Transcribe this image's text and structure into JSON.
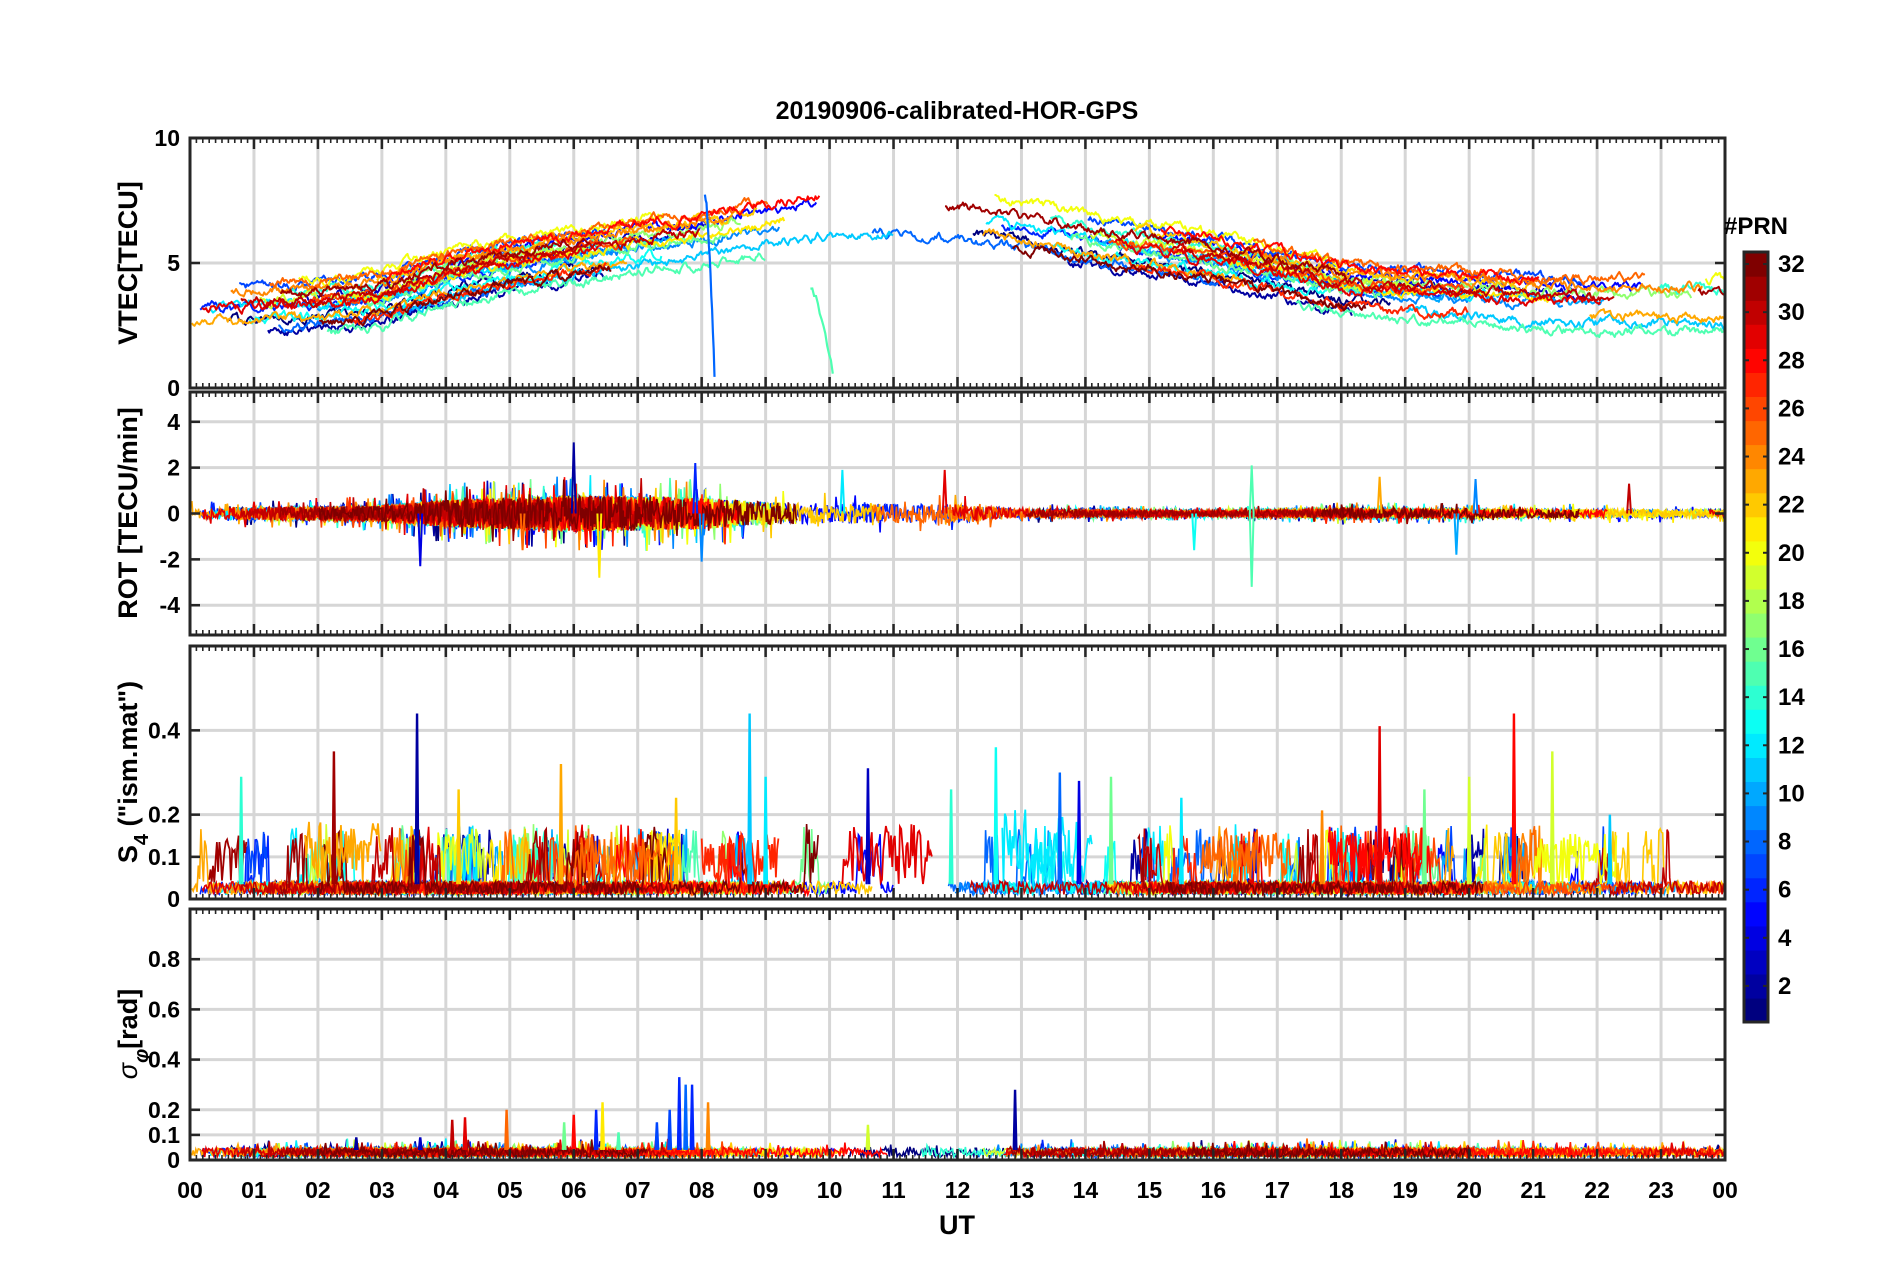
{
  "chart_data": {
    "type": "line",
    "title": "20190906-calibrated-HOR-GPS",
    "xlabel": "UT",
    "x_ticks": [
      "00",
      "01",
      "02",
      "03",
      "04",
      "05",
      "06",
      "07",
      "08",
      "09",
      "10",
      "11",
      "12",
      "13",
      "14",
      "15",
      "16",
      "17",
      "18",
      "19",
      "20",
      "21",
      "22",
      "23",
      "00"
    ],
    "xlim": [
      0,
      24
    ],
    "colorbar": {
      "label": "#PRN",
      "range": [
        1,
        32
      ],
      "ticks": [
        "2",
        "4",
        "6",
        "8",
        "10",
        "12",
        "14",
        "16",
        "18",
        "20",
        "22",
        "24",
        "26",
        "28",
        "30",
        "32"
      ],
      "colormap": [
        "#00007f",
        "#0000ff",
        "#007fff",
        "#00ffff",
        "#7fff7f",
        "#ffff00",
        "#ff7f00",
        "#ff0000",
        "#7f0000"
      ]
    },
    "panels": [
      {
        "name": "vtec",
        "ylabel_main": "VTEC[TECU]",
        "ylabel_sub": "",
        "ylabel_tail": "",
        "ylim": [
          0,
          10
        ],
        "y_ticks": [
          {
            "v": 0,
            "t": "0"
          },
          {
            "v": 5,
            "t": "5"
          },
          {
            "v": 10,
            "t": "10"
          }
        ],
        "trend": {
          "x": [
            0,
            2,
            3,
            4,
            5,
            6,
            7,
            8,
            9,
            10,
            11,
            12,
            13,
            14,
            15,
            16,
            17,
            18,
            19,
            20,
            21,
            22,
            23,
            24
          ],
          "y": [
            3.2,
            3.3,
            3.6,
            4.4,
            4.9,
            5.3,
            5.7,
            6.0,
            6.5,
            6.9,
            7.0,
            6.8,
            6.4,
            5.9,
            5.5,
            5.1,
            4.6,
            4.0,
            3.8,
            3.7,
            3.5,
            3.4,
            3.4,
            3.3
          ]
        },
        "spread": 1.1,
        "noise": 0.25,
        "extras": [
          {
            "prn": 8,
            "x": 8.05,
            "len": 0.15,
            "y": 7.8,
            "drop": 0.5
          },
          {
            "prn": 15,
            "x": 9.7,
            "len": 0.35,
            "y": 4.0,
            "drop": 0.6
          }
        ]
      },
      {
        "name": "rot",
        "ylabel_main": "ROT [TECU/min]",
        "ylabel_sub": "",
        "ylabel_tail": "",
        "ylim": [
          -5.3,
          5.3
        ],
        "y_ticks": [
          {
            "v": -4,
            "t": "-4"
          },
          {
            "v": -2,
            "t": "-2"
          },
          {
            "v": 0,
            "t": "0"
          },
          {
            "v": 2,
            "t": "2"
          },
          {
            "v": 4,
            "t": "4"
          }
        ],
        "activity": {
          "x": [
            0,
            3,
            4,
            6,
            8,
            9,
            10,
            12,
            13,
            16,
            18,
            24
          ],
          "y": [
            0.25,
            0.35,
            0.6,
            0.8,
            0.7,
            0.5,
            0.45,
            0.4,
            0.2,
            0.12,
            0.22,
            0.18
          ]
        },
        "spikes": [
          {
            "x": 6.0,
            "y": 3.1,
            "prn": 2
          },
          {
            "x": 3.6,
            "y": -2.3,
            "prn": 4
          },
          {
            "x": 6.4,
            "y": -2.8,
            "prn": 21
          },
          {
            "x": 8.0,
            "y": -2.1,
            "prn": 9
          },
          {
            "x": 7.9,
            "y": 2.2,
            "prn": 6
          },
          {
            "x": 16.6,
            "y": -3.2,
            "prn": 15
          },
          {
            "x": 16.6,
            "y": 2.1,
            "prn": 15
          },
          {
            "x": 19.8,
            "y": -1.8,
            "prn": 10
          },
          {
            "x": 15.7,
            "y": -1.6,
            "prn": 13
          },
          {
            "x": 20.1,
            "y": 1.5,
            "prn": 9
          },
          {
            "x": 11.8,
            "y": 1.9,
            "prn": 29
          },
          {
            "x": 22.5,
            "y": 1.3,
            "prn": 30
          },
          {
            "x": 18.6,
            "y": 1.6,
            "prn": 23
          },
          {
            "x": 5.2,
            "y": -1.6,
            "prn": 25
          },
          {
            "x": 10.2,
            "y": 1.9,
            "prn": 12
          }
        ]
      },
      {
        "name": "s4",
        "ylabel_main": "S",
        "ylabel_sub": "4",
        "ylabel_tail": " (\"ism.mat\")",
        "ylim": [
          0,
          0.6
        ],
        "y_ticks": [
          {
            "v": 0,
            "t": "0"
          },
          {
            "v": 0.1,
            "t": "0.1"
          },
          {
            "v": 0.2,
            "t": "0.2"
          },
          {
            "v": 0.4,
            "t": "0.4"
          }
        ],
        "baseline": 0.035,
        "spikes": [
          {
            "x": 3.55,
            "y": 0.44,
            "prn": 2
          },
          {
            "x": 2.25,
            "y": 0.35,
            "prn": 31
          },
          {
            "x": 8.75,
            "y": 0.44,
            "prn": 11
          },
          {
            "x": 20.7,
            "y": 0.44,
            "prn": 28
          },
          {
            "x": 18.6,
            "y": 0.41,
            "prn": 29
          },
          {
            "x": 12.6,
            "y": 0.36,
            "prn": 13
          },
          {
            "x": 5.8,
            "y": 0.32,
            "prn": 23
          },
          {
            "x": 4.2,
            "y": 0.26,
            "prn": 22
          },
          {
            "x": 13.6,
            "y": 0.3,
            "prn": 8
          },
          {
            "x": 13.9,
            "y": 0.28,
            "prn": 4
          },
          {
            "x": 21.3,
            "y": 0.35,
            "prn": 19
          },
          {
            "x": 10.6,
            "y": 0.31,
            "prn": 3
          },
          {
            "x": 11.9,
            "y": 0.26,
            "prn": 14
          },
          {
            "x": 7.6,
            "y": 0.24,
            "prn": 22
          },
          {
            "x": 9.0,
            "y": 0.29,
            "prn": 12
          },
          {
            "x": 14.4,
            "y": 0.29,
            "prn": 16
          },
          {
            "x": 0.8,
            "y": 0.29,
            "prn": 14
          },
          {
            "x": 15.5,
            "y": 0.24,
            "prn": 12
          },
          {
            "x": 17.7,
            "y": 0.21,
            "prn": 24
          },
          {
            "x": 19.3,
            "y": 0.26,
            "prn": 16
          },
          {
            "x": 20.0,
            "y": 0.29,
            "prn": 19
          },
          {
            "x": 22.2,
            "y": 0.2,
            "prn": 11
          }
        ],
        "bursts": [
          {
            "x": 1.8,
            "w": 1.2,
            "h": 0.15,
            "prn": 23
          },
          {
            "x": 6.0,
            "w": 1.6,
            "h": 0.12,
            "prn": 25
          },
          {
            "x": 8.0,
            "w": 1.2,
            "h": 0.12,
            "prn": 27
          },
          {
            "x": 10.2,
            "w": 1.4,
            "h": 0.15,
            "prn": 29
          },
          {
            "x": 12.7,
            "w": 1.4,
            "h": 0.18,
            "prn": 12
          },
          {
            "x": 15.8,
            "w": 1.4,
            "h": 0.13,
            "prn": 25
          },
          {
            "x": 17.8,
            "w": 1.6,
            "h": 0.14,
            "prn": 28
          },
          {
            "x": 21.0,
            "w": 1.3,
            "h": 0.12,
            "prn": 20
          },
          {
            "x": 0.3,
            "w": 0.6,
            "h": 0.12,
            "prn": 31
          }
        ]
      },
      {
        "name": "sigphi",
        "ylabel_main": "σ",
        "ylabel_sub": "φ",
        "ylabel_tail": "[rad]",
        "ylim": [
          0,
          1
        ],
        "y_ticks": [
          {
            "v": 0,
            "t": "0"
          },
          {
            "v": 0.1,
            "t": "0.1"
          },
          {
            "v": 0.2,
            "t": "0.2"
          },
          {
            "v": 0.4,
            "t": "0.4"
          },
          {
            "v": 0.6,
            "t": "0.6"
          },
          {
            "v": 0.8,
            "t": "0.8"
          }
        ],
        "baseline": 0.04,
        "spikes": [
          {
            "x": 7.65,
            "y": 0.33,
            "prn": 6
          },
          {
            "x": 7.75,
            "y": 0.3,
            "prn": 8
          },
          {
            "x": 7.85,
            "y": 0.3,
            "prn": 6
          },
          {
            "x": 7.5,
            "y": 0.2,
            "prn": 7
          },
          {
            "x": 7.3,
            "y": 0.15,
            "prn": 7
          },
          {
            "x": 12.9,
            "y": 0.28,
            "prn": 2
          },
          {
            "x": 6.45,
            "y": 0.23,
            "prn": 21
          },
          {
            "x": 6.35,
            "y": 0.2,
            "prn": 6
          },
          {
            "x": 4.3,
            "y": 0.17,
            "prn": 29
          },
          {
            "x": 4.1,
            "y": 0.16,
            "prn": 30
          },
          {
            "x": 4.95,
            "y": 0.2,
            "prn": 25
          },
          {
            "x": 5.85,
            "y": 0.15,
            "prn": 16
          },
          {
            "x": 6.0,
            "y": 0.18,
            "prn": 28
          },
          {
            "x": 10.6,
            "y": 0.14,
            "prn": 19
          },
          {
            "x": 3.6,
            "y": 0.09,
            "prn": 3
          },
          {
            "x": 8.1,
            "y": 0.23,
            "prn": 24
          },
          {
            "x": 6.7,
            "y": 0.11,
            "prn": 15
          },
          {
            "x": 2.6,
            "y": 0.09,
            "prn": 2
          }
        ]
      }
    ]
  }
}
